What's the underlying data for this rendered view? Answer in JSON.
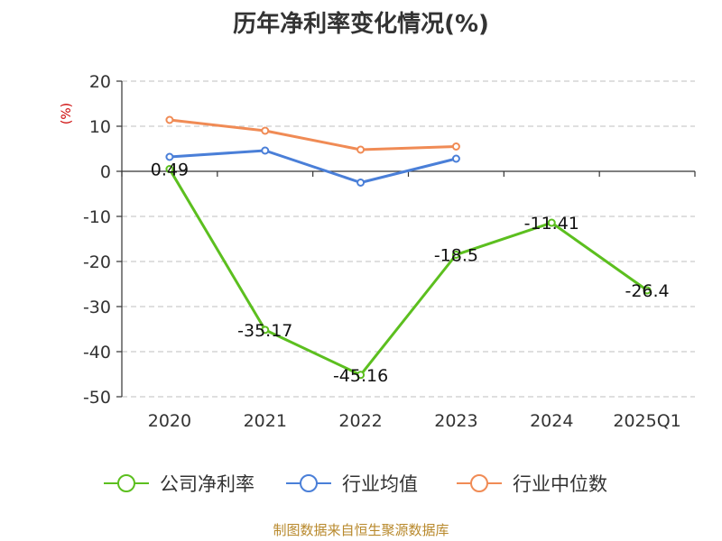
{
  "chart_data": {
    "type": "line",
    "title": "历年净利率变化情况(%)",
    "xlabel": "",
    "ylabel": "(%)",
    "categories": [
      "2020",
      "2021",
      "2022",
      "2023",
      "2024",
      "2025Q1"
    ],
    "ylim": [
      -50,
      20
    ],
    "yticks": [
      20,
      10,
      0,
      -10,
      -20,
      -30,
      -40,
      -50
    ],
    "grid": true,
    "legend_position": "bottom",
    "series": [
      {
        "name": "公司净利率",
        "color": "#5cbf1f",
        "values": [
          0.49,
          -35.17,
          -45.16,
          -18.5,
          -11.41,
          -26.4
        ],
        "labels": [
          "0.49",
          "-35.17",
          "-45.16",
          "-18.5",
          "-11.41",
          "-26.4"
        ]
      },
      {
        "name": "行业均值",
        "color": "#4a7fd8",
        "values": [
          3.2,
          4.6,
          -2.5,
          2.8,
          null,
          null
        ]
      },
      {
        "name": "行业中位数",
        "color": "#f08b55",
        "values": [
          11.4,
          9.0,
          4.8,
          5.5,
          null,
          null
        ]
      }
    ],
    "source": "制图数据来自恒生聚源数据库"
  }
}
